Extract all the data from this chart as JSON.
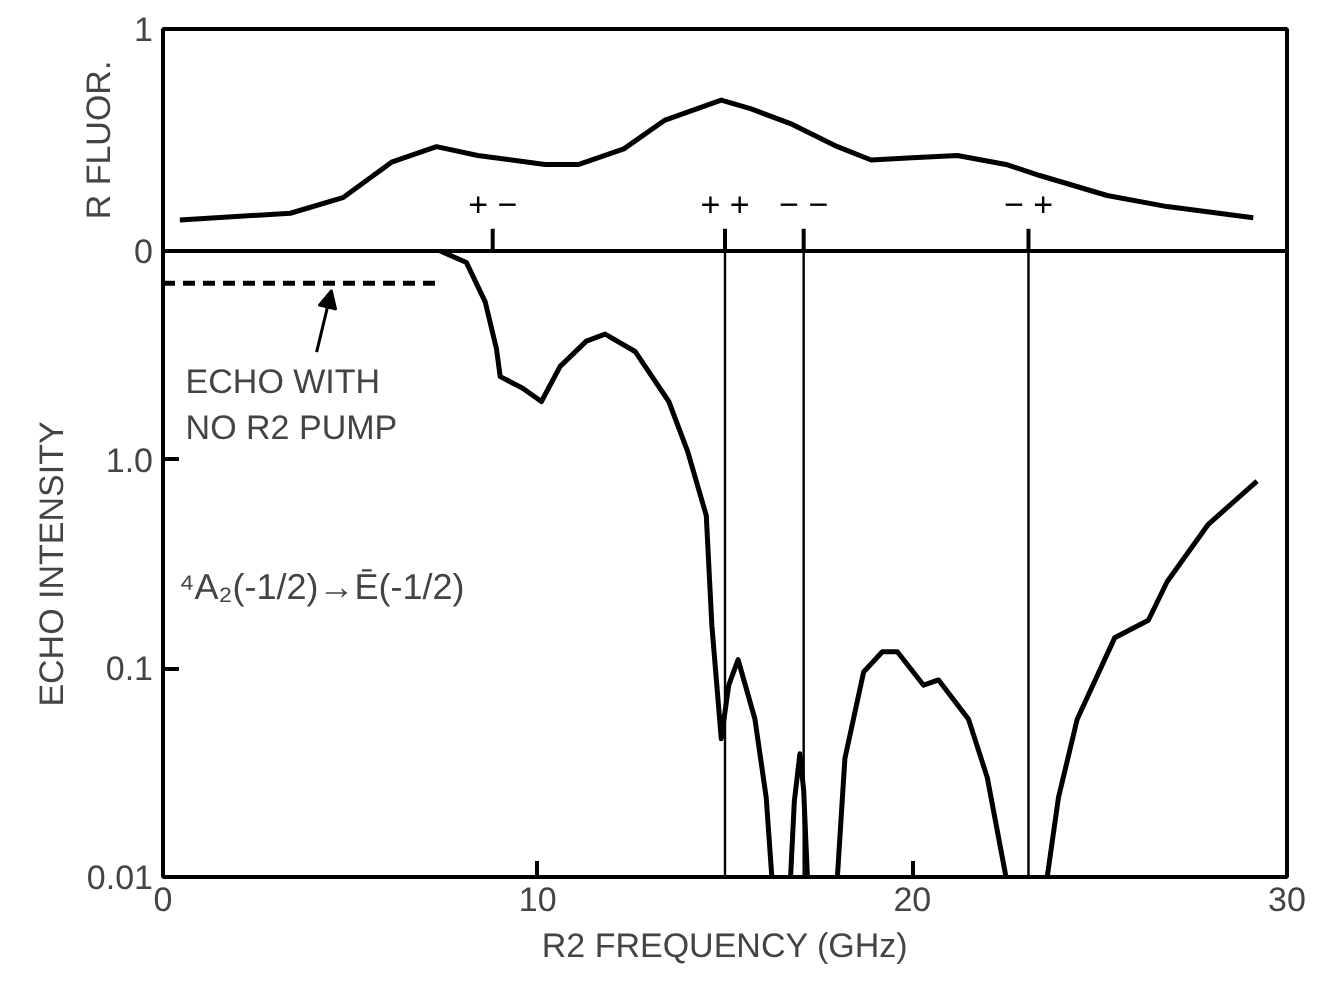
{
  "chart_data": [
    {
      "type": "line",
      "ylabel": "R FLUOR.",
      "xlim": [
        0,
        30
      ],
      "ylim": [
        0,
        1
      ],
      "yticks": [
        0,
        1
      ],
      "tick_labels": "y",
      "grid": false,
      "line_style": "solid",
      "marker": "none",
      "x": [
        0.45,
        3.4,
        4.8,
        6.1,
        7.3,
        8.4,
        10.2,
        11.1,
        12.3,
        13.4,
        14.9,
        15.7,
        16.8,
        18.0,
        18.9,
        20.0,
        21.2,
        22.5,
        23.4,
        25.2,
        26.8,
        29.1
      ],
      "values": [
        0.14,
        0.17,
        0.24,
        0.4,
        0.47,
        0.43,
        0.39,
        0.39,
        0.46,
        0.59,
        0.68,
        0.64,
        0.57,
        0.47,
        0.41,
        0.42,
        0.43,
        0.39,
        0.34,
        0.25,
        0.2,
        0.15
      ],
      "color": "#000000",
      "ref_lines": [
        {
          "axis": "x",
          "value": 8.8,
          "label": "+ −"
        },
        {
          "axis": "x",
          "value": 15.0,
          "label": "+ +"
        },
        {
          "axis": "x",
          "value": 17.1,
          "label": "− −"
        },
        {
          "axis": "x",
          "value": 23.1,
          "label": "− +"
        }
      ]
    },
    {
      "type": "line",
      "xlabel": "R2 FREQUENCY (GHz)",
      "ylabel": "ECHO INTENSITY",
      "log": "y",
      "xlim": [
        0,
        30
      ],
      "ylim": [
        0.01,
        10
      ],
      "xticks": [
        0,
        10,
        20,
        30
      ],
      "yticks": [
        0.01,
        0.1,
        {
          "value": 1,
          "label": "1.0"
        }
      ],
      "grid": false,
      "marker": "none",
      "series": [
        {
          "color": "#000000",
          "line_style": "solid",
          "x": [
            7.4,
            8.1,
            8.6,
            8.9,
            9.0,
            9.6,
            10.1,
            10.6,
            11.3,
            11.8,
            12.6,
            13.5,
            14.0,
            14.5,
            14.65,
            14.9,
            15.1,
            15.35,
            15.8,
            16.1,
            16.25,
            null,
            16.75,
            16.85,
            17.0,
            17.1,
            17.2,
            null,
            18.0,
            18.2,
            18.7,
            19.2,
            19.6,
            20.3,
            20.7,
            21.5,
            22.0,
            22.5,
            null,
            23.6,
            23.9,
            24.4,
            25.4,
            26.3,
            26.8,
            27.9,
            29.2
          ],
          "values": [
            10,
            8.8,
            5.7,
            3.4,
            2.5,
            2.2,
            1.9,
            2.8,
            3.7,
            4.0,
            3.3,
            1.9,
            1.1,
            0.54,
            0.16,
            0.046,
            0.083,
            0.11,
            0.057,
            0.024,
            0.01,
            null,
            0.01,
            0.023,
            0.039,
            0.026,
            0.01,
            null,
            0.01,
            0.037,
            0.096,
            0.12,
            0.12,
            0.083,
            0.088,
            0.057,
            0.03,
            0.01,
            null,
            0.01,
            0.024,
            0.057,
            0.14,
            0.17,
            0.26,
            0.49,
            0.79
          ]
        },
        {
          "color": "#000000",
          "line_style": "dashed",
          "x": [
            0,
            7.4
          ],
          "values": [
            7,
            7
          ]
        }
      ],
      "ref_lines": [
        {
          "axis": "x",
          "value": 15.0,
          "label": null
        },
        {
          "axis": "x",
          "value": 17.1,
          "label": null
        },
        {
          "axis": "x",
          "value": 23.1,
          "label": null
        }
      ],
      "annotations": [
        {
          "text": "ECHO WITH\nNO R2 PUMP",
          "x": 4.5,
          "y": 7
        },
        "⁴A₂(-1/2)→Ē(-1/2)"
      ]
    }
  ]
}
